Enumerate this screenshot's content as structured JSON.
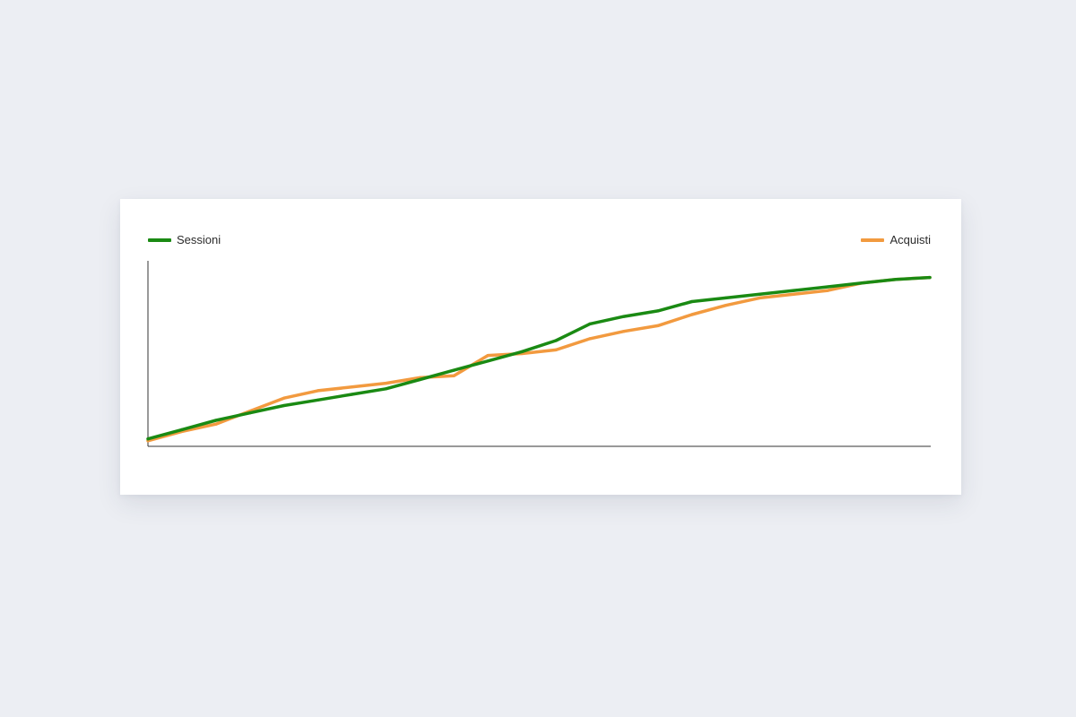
{
  "chart_data": {
    "type": "line",
    "title": "",
    "xlabel": "",
    "ylabel": "",
    "x": [
      1,
      2,
      3,
      4,
      5,
      6,
      7,
      8,
      9,
      10,
      11,
      12,
      13,
      14,
      15,
      16,
      17,
      18,
      19,
      20,
      21,
      22,
      23,
      24
    ],
    "ylim": [
      0,
      100
    ],
    "grid": false,
    "legend": [
      "top-left",
      "top-right"
    ],
    "series": [
      {
        "name": "Sessioni",
        "color": "#1a8a13",
        "values": [
          4,
          9,
          14,
          18,
          22,
          25,
          28,
          31,
          36,
          41,
          46,
          51,
          57,
          66,
          70,
          73,
          78,
          80,
          82,
          84,
          86,
          88,
          90,
          91
        ]
      },
      {
        "name": "Acquisti",
        "color": "#f29a3f",
        "values": [
          3,
          8,
          12,
          19,
          26,
          30,
          32,
          34,
          37,
          38,
          49,
          50,
          52,
          58,
          62,
          65,
          71,
          76,
          80,
          82,
          84,
          88,
          90,
          91
        ]
      }
    ]
  }
}
